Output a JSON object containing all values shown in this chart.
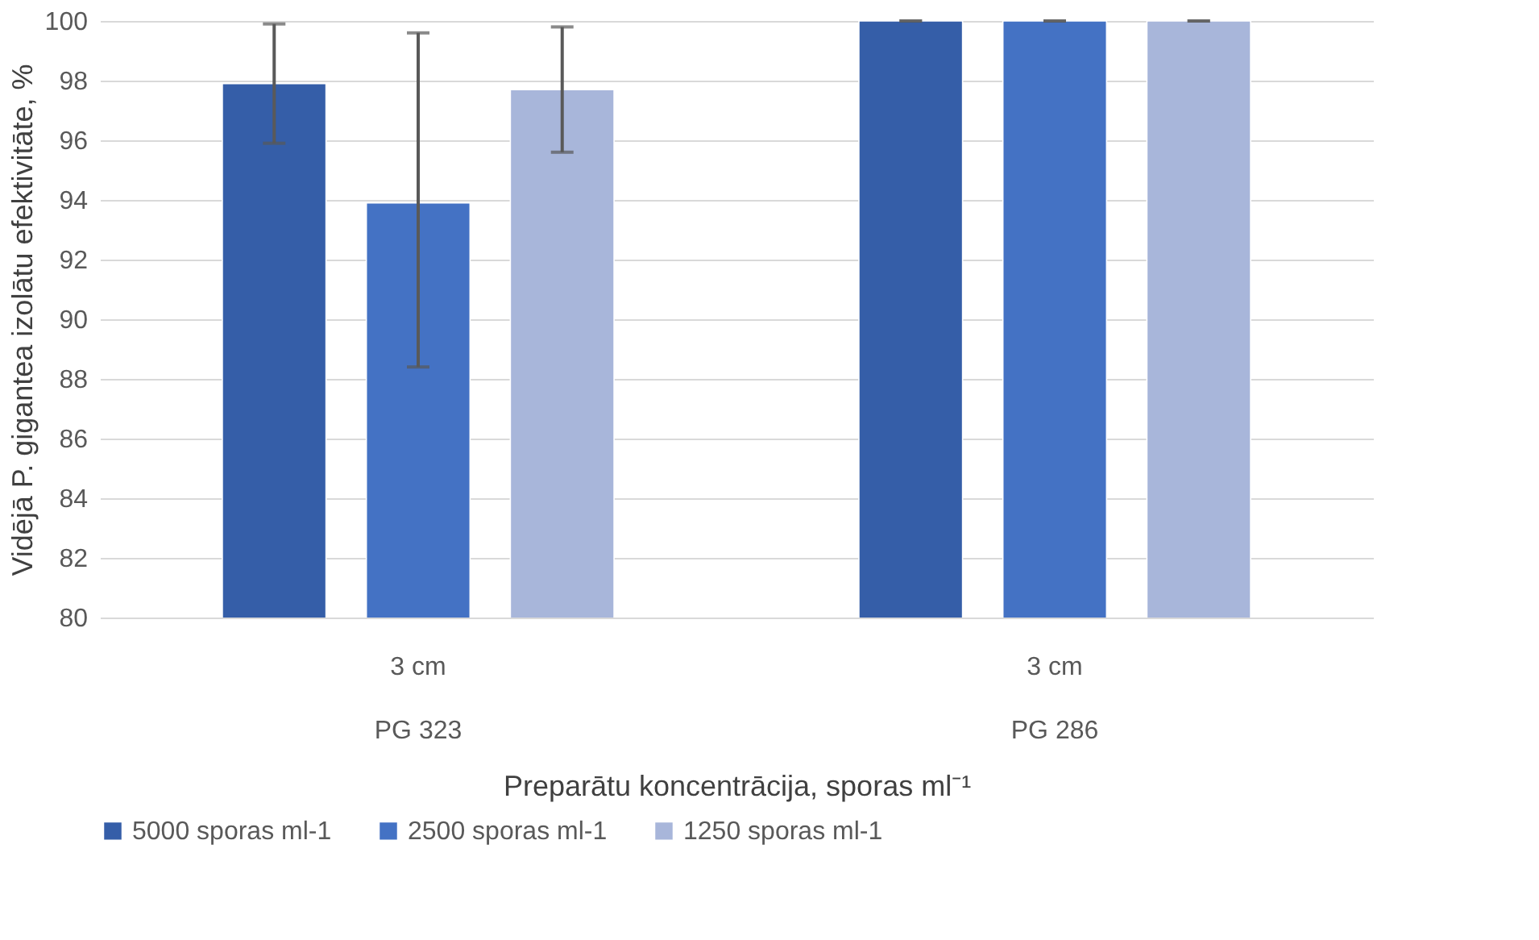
{
  "chart_data": {
    "type": "bar",
    "categories": [
      "3 cm",
      "3 cm"
    ],
    "xlabel": "Preparātu koncentrācija, sporas ml⁻¹",
    "ylabel": "Vidējā P. gigantea izolātu efektivitāte, %",
    "annotations": [
      "PG 323",
      "PG 286"
    ],
    "series": [
      {
        "name": "5000 sporas ml-1",
        "color": "#355ea8",
        "values": [
          97.9,
          100
        ],
        "errors": [
          [
            95.9,
            99.9
          ],
          0
        ]
      },
      {
        "name": "2500 sporas ml-1",
        "color": "#4472c4",
        "values": [
          93.9,
          100
        ],
        "errors": [
          [
            88.4,
            99.6
          ],
          0
        ]
      },
      {
        "name": "1250 sporas ml-1",
        "color": "#a8b6da",
        "values": [
          97.7,
          100
        ],
        "errors": [
          [
            95.6,
            99.8
          ],
          0
        ]
      }
    ],
    "ylim": [
      80,
      100
    ],
    "yticks": [
      80,
      82,
      84,
      86,
      88,
      90,
      92,
      94,
      96,
      98,
      100
    ],
    "grid": "y",
    "legend": "bottom"
  }
}
